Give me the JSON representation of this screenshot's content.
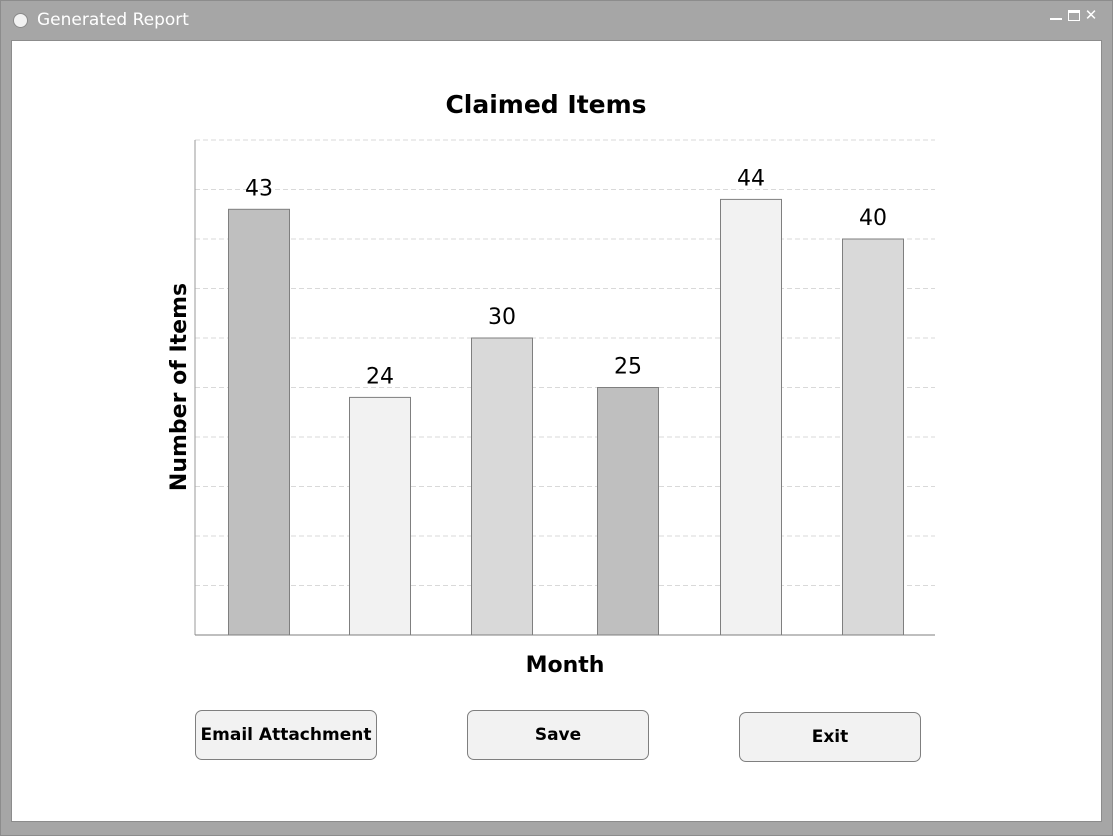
{
  "window": {
    "title": "Generated Report",
    "close_glyph": "✕"
  },
  "chart_data": {
    "type": "bar",
    "title": "Claimed Items",
    "xlabel": "Month",
    "ylabel": "Number of Items",
    "categories": [
      "",
      "",
      "",
      "",
      "",
      ""
    ],
    "values": [
      43,
      24,
      30,
      25,
      44,
      40
    ],
    "bar_colors": [
      "#bfbfbf",
      "#f2f2f2",
      "#d9d9d9",
      "#bfbfbf",
      "#f2f2f2",
      "#d9d9d9"
    ],
    "ylim": [
      0,
      50
    ],
    "grid": true
  },
  "buttons": {
    "email": "Email Attachment",
    "save": "Save",
    "exit": "Exit"
  }
}
